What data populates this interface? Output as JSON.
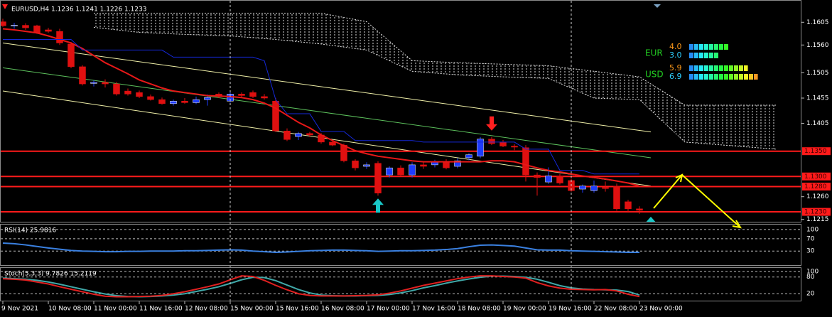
{
  "chart_data": {
    "type": "candlestick",
    "title": "EURUSD,H4  1.1236 1.1241 1.1226 1.1233",
    "xlim": [
      -0.25,
      70.25
    ],
    "xticks": [
      {
        "value": 0,
        "label": "9 Nov 2021"
      },
      {
        "value": 4,
        "label": "10 Nov 08:00"
      },
      {
        "value": 8,
        "label": "11 Nov 00:00"
      },
      {
        "value": 12,
        "label": "11 Nov 16:00"
      },
      {
        "value": 16,
        "label": "12 Nov 08:00"
      },
      {
        "value": 20,
        "label": "15 Nov 00:00"
      },
      {
        "value": 24,
        "label": "15 Nov 16:00"
      },
      {
        "value": 28,
        "label": "16 Nov 08:00"
      },
      {
        "value": 32,
        "label": "17 Nov 00:00"
      },
      {
        "value": 36,
        "label": "17 Nov 16:00"
      },
      {
        "value": 40,
        "label": "18 Nov 08:00"
      },
      {
        "value": 44,
        "label": "19 Nov 00:00"
      },
      {
        "value": 48,
        "label": "19 Nov 16:00"
      },
      {
        "value": 52,
        "label": "22 Nov 08:00"
      },
      {
        "value": 56,
        "label": "23 Nov 00:00"
      }
    ],
    "separators": [
      20,
      50
    ],
    "ylim": [
      1.1209,
      1.1649
    ],
    "yticks": [
      {
        "value": 1.1605,
        "label": "1.1605"
      },
      {
        "value": 1.156,
        "label": "1.1560"
      },
      {
        "value": 1.1505,
        "label": "1.1505"
      },
      {
        "value": 1.1455,
        "label": "1.1455"
      },
      {
        "value": 1.1405,
        "label": "1.1405"
      },
      {
        "value": 1.126,
        "label": "1.1260"
      },
      {
        "value": 1.1215,
        "label": "1.1215"
      }
    ],
    "up_color": "#1e3cff",
    "down_color": "#e01010",
    "candles": {
      "open": [
        1.1606,
        1.1598,
        1.1599,
        1.1598,
        1.159,
        1.1587,
        1.1562,
        1.1517,
        1.1484,
        1.1486,
        1.1483,
        1.1469,
        1.1466,
        1.1458,
        1.1452,
        1.1444,
        1.1449,
        1.1446,
        1.1452,
        1.1463,
        1.1449,
        1.1463,
        1.1466,
        1.1458,
        1.1449,
        1.139,
        1.1379,
        1.1385,
        1.1382,
        1.1368,
        1.1362,
        1.1331,
        1.132,
        1.1326,
        1.1303,
        1.1317,
        1.1303,
        1.1323,
        1.1323,
        1.1329,
        1.132,
        1.1337,
        1.134,
        1.1374,
        1.1368,
        1.136,
        1.1357,
        1.1303,
        1.1289,
        1.1301,
        1.1292,
        1.1275,
        1.1272,
        1.1278,
        1.1281,
        1.125,
        1.1236
      ],
      "high": [
        1.1612,
        1.1604,
        1.1603,
        1.16,
        1.1594,
        1.1592,
        1.1566,
        1.152,
        1.149,
        1.1492,
        1.1487,
        1.1474,
        1.147,
        1.1462,
        1.1456,
        1.1452,
        1.1455,
        1.1458,
        1.1462,
        1.1466,
        1.1466,
        1.1466,
        1.147,
        1.1463,
        1.1455,
        1.1395,
        1.1388,
        1.1388,
        1.1386,
        1.1372,
        1.1365,
        1.1334,
        1.1328,
        1.133,
        1.132,
        1.1322,
        1.1328,
        1.133,
        1.1333,
        1.1334,
        1.1336,
        1.1346,
        1.1378,
        1.1378,
        1.1372,
        1.1364,
        1.1362,
        1.1308,
        1.1318,
        1.1305,
        1.1296,
        1.1284,
        1.1292,
        1.129,
        1.1286,
        1.1254,
        1.1241
      ],
      "low": [
        1.1596,
        1.1592,
        1.159,
        1.1582,
        1.1584,
        1.156,
        1.1514,
        1.148,
        1.1478,
        1.1476,
        1.146,
        1.146,
        1.1455,
        1.145,
        1.1442,
        1.144,
        1.1444,
        1.1443,
        1.144,
        1.1455,
        1.1446,
        1.1456,
        1.1455,
        1.1452,
        1.1388,
        1.137,
        1.1372,
        1.1378,
        1.1365,
        1.136,
        1.1328,
        1.1312,
        1.1315,
        1.1262,
        1.1298,
        1.13,
        1.1298,
        1.1315,
        1.1318,
        1.1314,
        1.1316,
        1.1332,
        1.1336,
        1.1362,
        1.1358,
        1.1352,
        1.129,
        1.1262,
        1.1285,
        1.1284,
        1.127,
        1.1268,
        1.1268,
        1.127,
        1.1232,
        1.123,
        1.1226
      ],
      "close": [
        1.1598,
        1.1599,
        1.1594,
        1.1584,
        1.1587,
        1.1564,
        1.1517,
        1.1483,
        1.1486,
        1.1483,
        1.1463,
        1.1463,
        1.1458,
        1.1452,
        1.1444,
        1.1449,
        1.1446,
        1.1452,
        1.1456,
        1.1458,
        1.1463,
        1.146,
        1.1458,
        1.1455,
        1.139,
        1.1373,
        1.1385,
        1.1382,
        1.1368,
        1.1362,
        1.1331,
        1.1317,
        1.1323,
        1.1267,
        1.1317,
        1.1303,
        1.1323,
        1.132,
        1.1329,
        1.1317,
        1.1331,
        1.1343,
        1.1374,
        1.1365,
        1.136,
        1.1358,
        1.1303,
        1.1298,
        1.1301,
        1.1287,
        1.1272,
        1.1281,
        1.1281,
        1.1276,
        1.1236,
        1.1236,
        1.1233
      ]
    },
    "lines": [
      {
        "color": "#e81818",
        "width": 2,
        "values": [
          1.1592,
          1.159,
          1.1587,
          1.1584,
          1.1578,
          1.1571,
          1.1564,
          1.1553,
          1.1539,
          1.1525,
          1.1514,
          1.1503,
          1.1491,
          1.1483,
          1.1475,
          1.1469,
          1.1466,
          1.1463,
          1.146,
          1.1459,
          1.1458,
          1.1456,
          1.1452,
          1.1445,
          1.1435,
          1.1421,
          1.1407,
          1.1396,
          1.1382,
          1.1371,
          1.1361,
          1.1351,
          1.1345,
          1.134,
          1.1337,
          1.1334,
          1.1331,
          1.1329,
          1.1329,
          1.1329,
          1.1329,
          1.1329,
          1.1329,
          1.1331,
          1.1331,
          1.1329,
          1.1323,
          1.1317,
          1.1312,
          1.1309,
          1.1305,
          1.1301,
          1.1298,
          1.1295,
          1.1291,
          1.1287,
          1.1281
        ]
      },
      {
        "color": "#1428d8",
        "width": 1,
        "values": [
          1.1571,
          1.1571,
          1.1571,
          1.1571,
          1.1571,
          1.1571,
          1.1571,
          1.155,
          1.155,
          1.155,
          1.155,
          1.155,
          1.155,
          1.155,
          1.155,
          1.1536,
          1.1536,
          1.1536,
          1.1536,
          1.1536,
          1.1536,
          1.1536,
          1.1536,
          1.1529,
          1.1452,
          1.1424,
          1.1424,
          1.1424,
          1.1389,
          1.1389,
          1.1389,
          1.1371,
          1.1371,
          1.1371,
          1.1371,
          1.1371,
          1.1371,
          1.1368,
          1.1368,
          1.1368,
          1.1368,
          1.1368,
          1.1368,
          1.1368,
          1.1368,
          1.1368,
          1.1354,
          1.1354,
          1.1354,
          1.1312,
          1.1312,
          1.1312,
          1.1305,
          1.1305,
          1.1305,
          1.1305,
          1.1305
        ]
      }
    ],
    "trendlines": [
      {
        "color": "#f0f0a8",
        "x": [
          0,
          57
        ],
        "y": [
          1.1564,
          1.1388
        ]
      },
      {
        "color": "#5cc05c",
        "x": [
          0,
          57
        ],
        "y": [
          1.1515,
          1.1337
        ]
      },
      {
        "color": "#f0f0a8",
        "x": [
          0,
          57
        ],
        "y": [
          1.1469,
          1.1281
        ]
      }
    ],
    "cloud": {
      "color": "#e0e0e0",
      "x": [
        8,
        12,
        16,
        20,
        24,
        28,
        32,
        36,
        40,
        44,
        48,
        52,
        56,
        60,
        64,
        68
      ],
      "upper": [
        1.1623,
        1.1623,
        1.1623,
        1.1623,
        1.1623,
        1.1623,
        1.1606,
        1.1529,
        1.1525,
        1.1522,
        1.1519,
        1.1508,
        1.1497,
        1.1441,
        1.1441,
        1.1441
      ],
      "lower": [
        1.1595,
        1.1585,
        1.1581,
        1.1578,
        1.1571,
        1.1562,
        1.155,
        1.1508,
        1.1501,
        1.1497,
        1.1494,
        1.1455,
        1.1452,
        1.1368,
        1.1361,
        1.1354
      ]
    },
    "hline_color": "#ff1a1a",
    "hlines": [
      {
        "value": 1.135,
        "label": "1.1350"
      },
      {
        "value": 1.13,
        "label": "1.1300"
      },
      {
        "value": 1.128,
        "label": "1.1280"
      },
      {
        "value": 1.123,
        "label": "1.1230"
      }
    ],
    "signals": [
      {
        "x": 33,
        "y": 1.1262,
        "dir": "up",
        "color": "#19c8c8"
      },
      {
        "x": 43,
        "y": 1.1385,
        "dir": "down",
        "color": "#ff2020"
      },
      {
        "x": 57,
        "y": 1.1226,
        "dir": "up",
        "color": "#19c8c8"
      }
    ],
    "strength": [
      {
        "currency": "EUR",
        "color": "#22cc22",
        "values": [
          4.0,
          3.0
        ],
        "value_labels": [
          "4.0",
          "3.0"
        ],
        "value_colors": [
          "#ff9a1a",
          "#30d0ff"
        ]
      },
      {
        "currency": "USD",
        "color": "#22cc22",
        "values": [
          5.9,
          6.9
        ],
        "value_labels": [
          "5.9",
          "6.9"
        ],
        "value_colors": [
          "#ff9a1a",
          "#30d0ff"
        ]
      }
    ],
    "panels": [
      {
        "type": "line",
        "label": "RSI(14) 25.9816",
        "ylim": [
          -18,
          116
        ],
        "yticks": [
          100,
          70,
          30
        ],
        "series": [
          {
            "color": "#3a80e0",
            "values": [
              56,
              54,
              50,
              45,
              40,
              36,
              32,
              30,
              29,
              28,
              28,
              29,
              29,
              30,
              30,
              30,
              31,
              31,
              32,
              33,
              34,
              33,
              30,
              28,
              26,
              27,
              29,
              31,
              32,
              33,
              33,
              32,
              31,
              29,
              30,
              31,
              31,
              32,
              33,
              35,
              38,
              44,
              49,
              50,
              48,
              46,
              40,
              34,
              33,
              33,
              31,
              30,
              29,
              28,
              27,
              26,
              25.9816
            ]
          }
        ]
      },
      {
        "type": "line",
        "label": "Stoch(5,3,3) 9.7826 15.2119",
        "ylim": [
          -7.5,
          112.5
        ],
        "yticks": [
          100,
          80,
          20
        ],
        "series": [
          {
            "color": "#40a8a8",
            "values": [
              76,
              74,
              72,
              68,
              62,
              54,
              45,
              36,
              27,
              19,
              13,
              10,
              9,
              10,
              12,
              15,
              20,
              28,
              36,
              45,
              57,
              70,
              79,
              78,
              67,
              51,
              35,
              23,
              15,
              13,
              12,
              12,
              13,
              14,
              17,
              23,
              31,
              41,
              49,
              58,
              66,
              73,
              79,
              83,
              83,
              82,
              79,
              72,
              61,
              49,
              41,
              37,
              35,
              34,
              33,
              28,
              15.2119
            ]
          },
          {
            "color": "#e02020",
            "values": [
              74,
              72,
              69,
              62,
              55,
              45,
              36,
              27,
              18,
              11,
              9,
              9,
              10,
              11,
              14,
              20,
              27,
              36,
              45,
              55,
              70,
              84,
              82,
              68,
              50,
              34,
              20,
              14,
              12,
              12,
              12,
              13,
              14,
              16,
              22,
              30,
              40,
              50,
              58,
              66,
              74,
              80,
              84,
              84,
              82,
              80,
              76,
              60,
              48,
              40,
              36,
              35,
              34,
              35,
              30,
              18,
              9.7826
            ]
          }
        ]
      }
    ]
  }
}
